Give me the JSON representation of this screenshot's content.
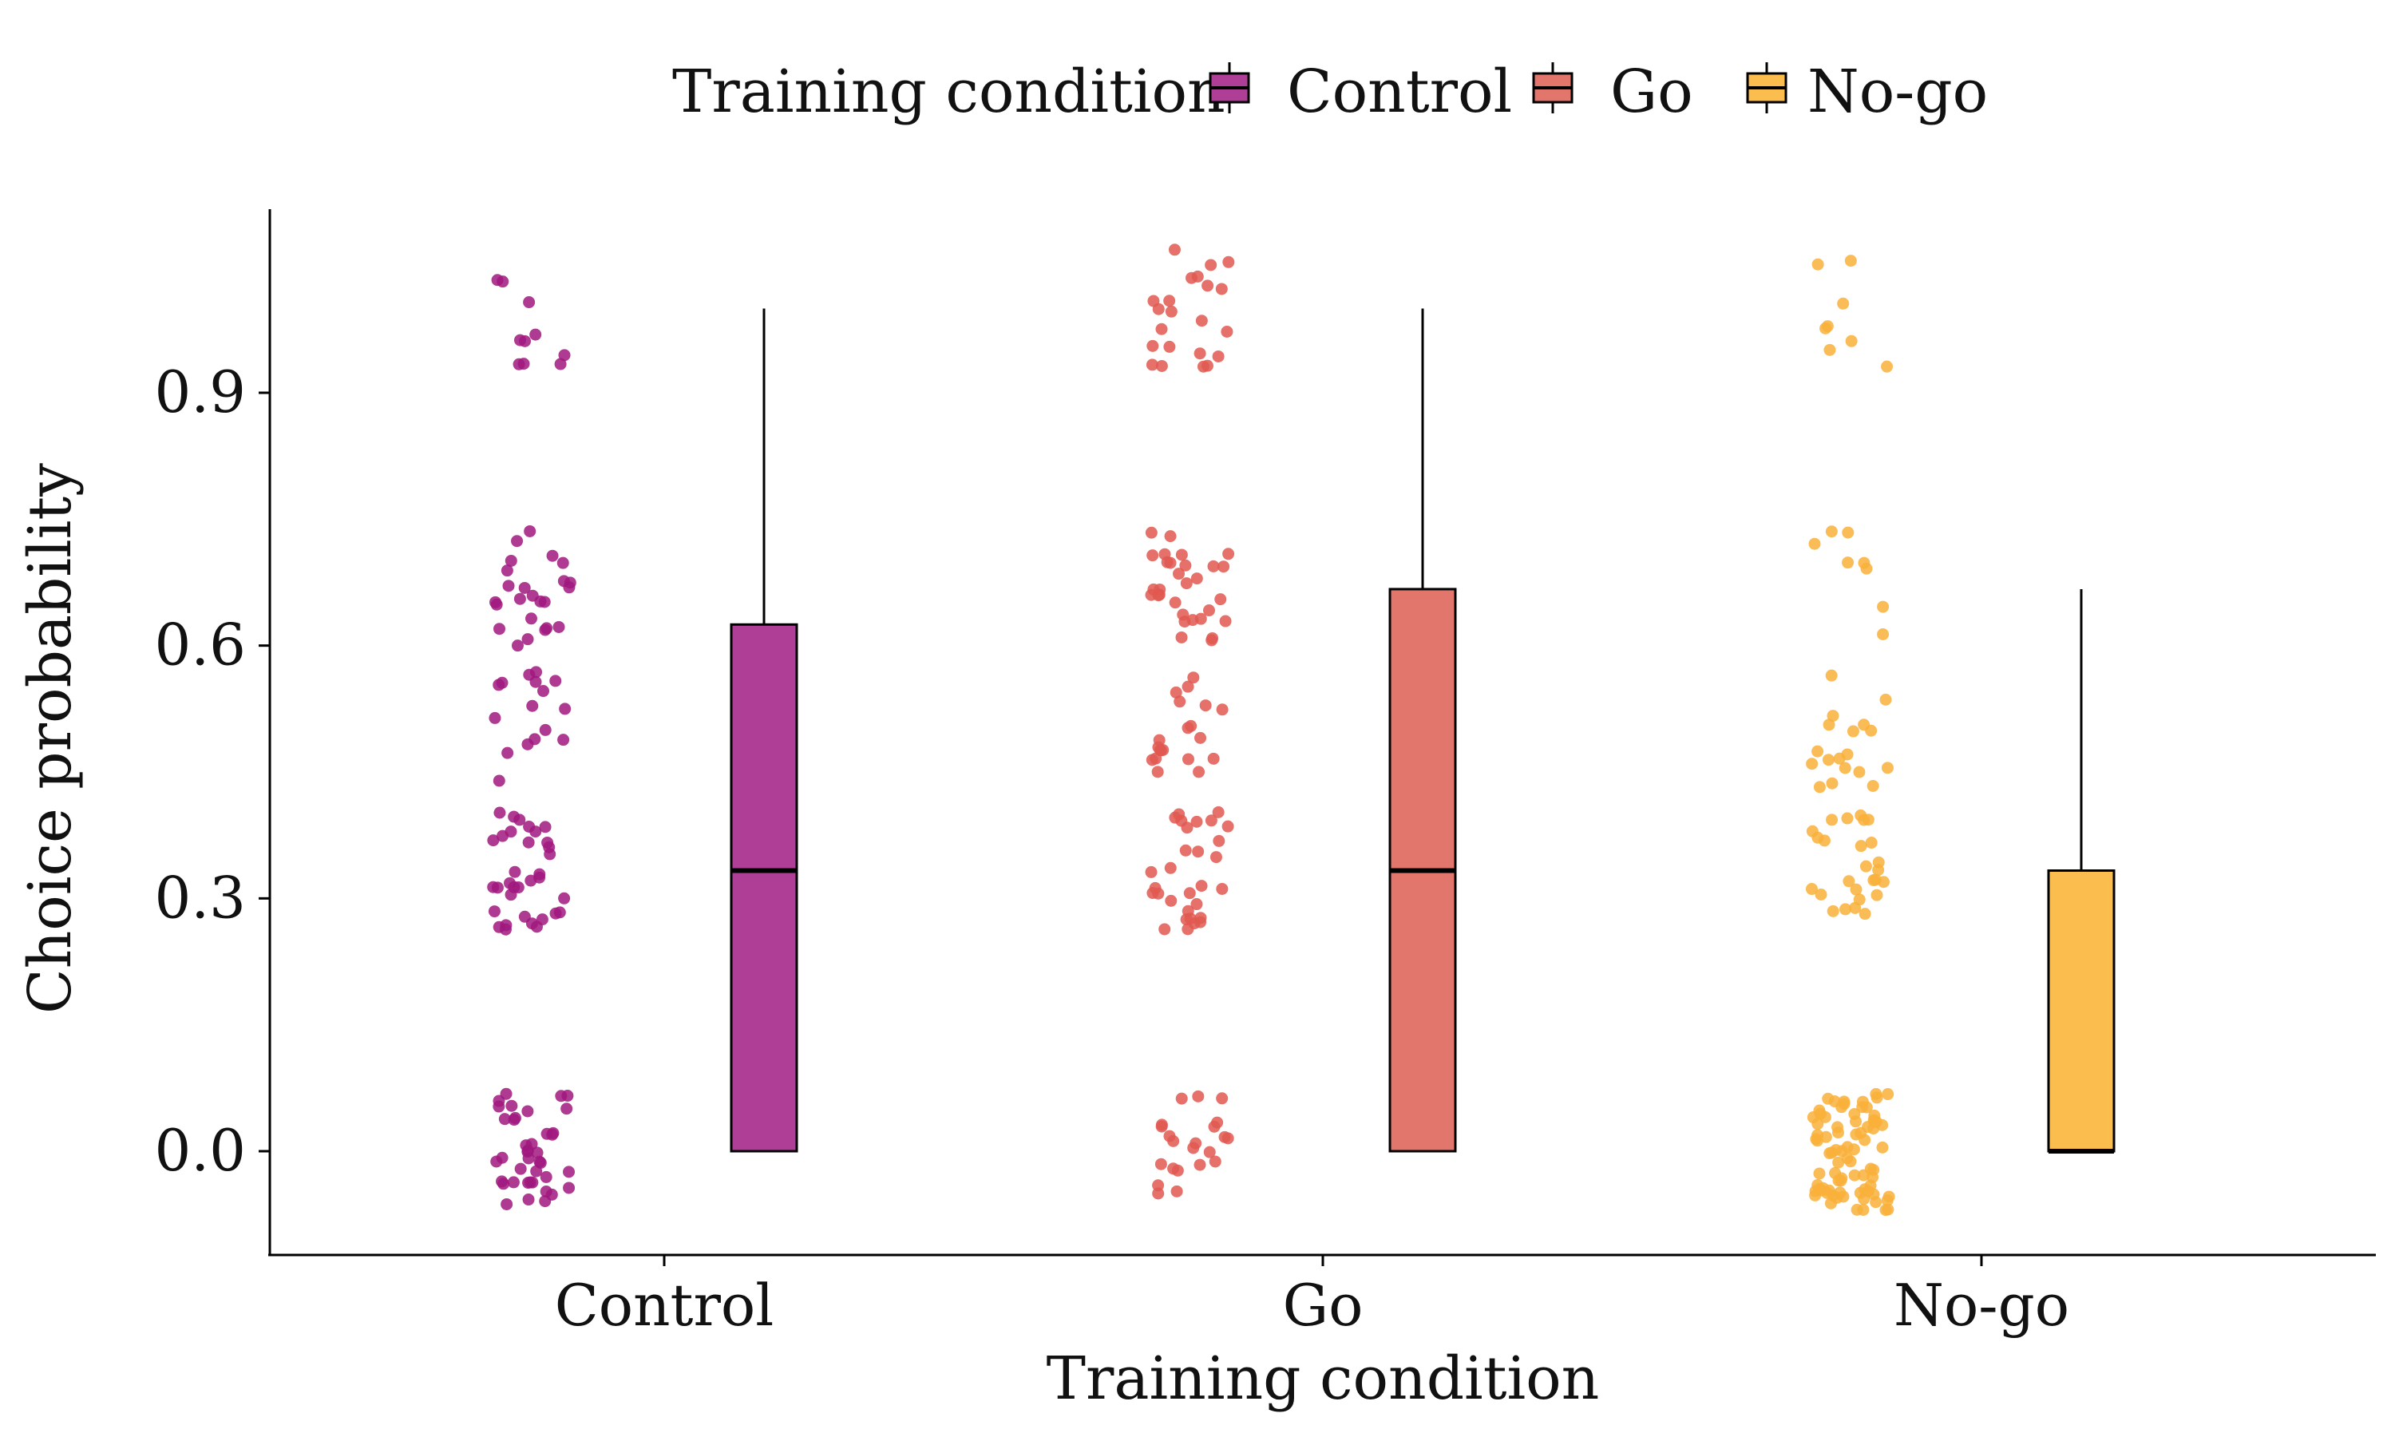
{
  "chart_data": {
    "type": "box",
    "title": "",
    "xlabel": "Training condition",
    "ylabel": "Choice probability",
    "categories": [
      "Control",
      "Go",
      "No-go"
    ],
    "ylim": [
      -0.12,
      1.12
    ],
    "yticks": [
      0.0,
      0.3,
      0.6,
      0.9
    ],
    "ytick_labels": [
      "0.0",
      "0.3",
      "0.6",
      "0.9"
    ],
    "legend": {
      "title": "Training condition",
      "position": "top",
      "entries": [
        "Control",
        "Go",
        "No-go"
      ]
    },
    "boxes": [
      {
        "name": "Control",
        "color": "#ae3e96",
        "point_color": "#a0187e",
        "q1": 0.0,
        "median": 0.333,
        "q3": 0.625,
        "whisker_low": 0.0,
        "whisker_high": 1.0
      },
      {
        "name": "Go",
        "color": "#e2756c",
        "point_color": "#e05850",
        "q1": 0.0,
        "median": 0.333,
        "q3": 0.667,
        "whisker_low": 0.0,
        "whisker_high": 1.0
      },
      {
        "name": "No-go",
        "color": "#fbbd4e",
        "point_color": "#f9b03a",
        "q1": 0.0,
        "median": 0.0,
        "q3": 0.333,
        "whisker_low": 0.0,
        "whisker_high": 0.667
      }
    ],
    "points": [
      {
        "name": "Control",
        "clusters": [
          {
            "value": 0.0,
            "count": 40
          },
          {
            "value": 0.333,
            "count": 34
          },
          {
            "value": 0.5,
            "count": 16
          },
          {
            "value": 0.667,
            "count": 24
          },
          {
            "value": 1.0,
            "count": 10
          }
        ]
      },
      {
        "name": "Go",
        "clusters": [
          {
            "value": 0.0,
            "count": 22
          },
          {
            "value": 0.333,
            "count": 30
          },
          {
            "value": 0.5,
            "count": 20
          },
          {
            "value": 0.667,
            "count": 30
          },
          {
            "value": 1.0,
            "count": 22
          }
        ]
      },
      {
        "name": "No-go",
        "clusters": [
          {
            "value": 0.0,
            "count": 80
          },
          {
            "value": 0.333,
            "count": 26
          },
          {
            "value": 0.5,
            "count": 18
          },
          {
            "value": 0.667,
            "count": 8
          },
          {
            "value": 1.0,
            "count": 8
          }
        ]
      }
    ]
  }
}
